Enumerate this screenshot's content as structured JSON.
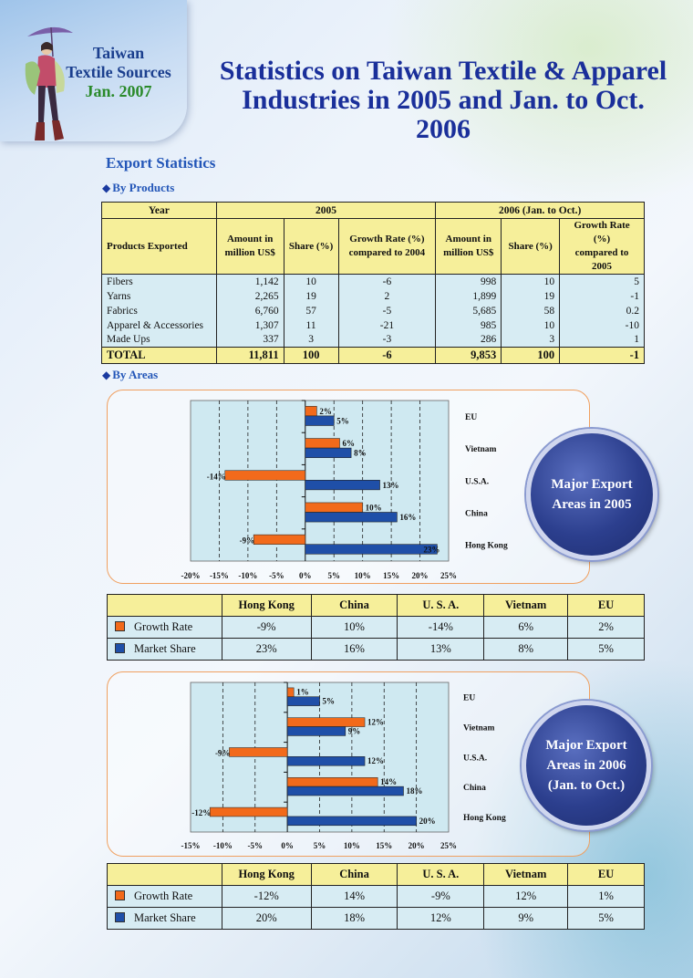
{
  "corner": {
    "line1": "Taiwan",
    "line2": "Textile Sources",
    "line3": "Jan. 2007"
  },
  "title": {
    "line1": "Statistics on Taiwan Textile & Apparel",
    "line2": "Industries in 2005 and Jan. to Oct. 2006"
  },
  "section": "Export Statistics",
  "by_products_label": "By Products",
  "by_areas_label": "By Areas",
  "product_table": {
    "year_label": "Year",
    "year_2005": "2005",
    "year_2006": "2006 (Jan. to Oct.)",
    "col_products": "Products  Exported",
    "col_amount_a": "Amount in",
    "col_amount_b": "million US$",
    "col_share": "Share (%)",
    "col_growth_a": "Growth Rate (%)",
    "col_growth_2004": "compared to 2004",
    "col_growth_2005": "compared to 2005",
    "rows": [
      {
        "name": "Fibers",
        "a05": "1,142",
        "s05": "10",
        "g05": "-6",
        "a06": "998",
        "s06": "10",
        "g06": "5"
      },
      {
        "name": "Yarns",
        "a05": "2,265",
        "s05": "19",
        "g05": "2",
        "a06": "1,899",
        "s06": "19",
        "g06": "-1"
      },
      {
        "name": "Fabrics",
        "a05": "6,760",
        "s05": "57",
        "g05": "-5",
        "a06": "5,685",
        "s06": "58",
        "g06": "0.2"
      },
      {
        "name": "Apparel & Accessories",
        "a05": "1,307",
        "s05": "11",
        "g05": "-21",
        "a06": "985",
        "s06": "10",
        "g06": "-10"
      },
      {
        "name": "Made Ups",
        "a05": "337",
        "s05": "3",
        "g05": "-3",
        "a06": "286",
        "s06": "3",
        "g06": "1"
      }
    ],
    "total": {
      "name": "TOTAL",
      "a05": "11,811",
      "s05": "100",
      "g05": "-6",
      "a06": "9,853",
      "s06": "100",
      "g06": "-1"
    }
  },
  "colors": {
    "growth": "#f26a1b",
    "share": "#1f4fa8",
    "header": "#f6ef9a",
    "cell": "#d7ecf3"
  },
  "chart_data": [
    {
      "type": "bar",
      "orientation": "horizontal",
      "categories": [
        "EU",
        "Vietnam",
        "U.S.A.",
        "China",
        "Hong Kong"
      ],
      "series": [
        {
          "name": "Growth Rate",
          "values": [
            2,
            6,
            -14,
            10,
            -9
          ]
        },
        {
          "name": "Market Share",
          "values": [
            5,
            8,
            13,
            16,
            23
          ]
        }
      ],
      "xlim": [
        -20,
        25
      ],
      "ticks": [
        -20,
        -15,
        -10,
        -5,
        0,
        5,
        10,
        15,
        20,
        25
      ],
      "tick_labels": [
        "-20%",
        "-15%",
        "-10%",
        "-5%",
        "0%",
        "5%",
        "10%",
        "15%",
        "20%",
        "25%"
      ],
      "label_growth": [
        "2%",
        "6%",
        "-14%",
        "10%",
        "-9%"
      ],
      "label_share": [
        "5%",
        "8%",
        "13%",
        "16%",
        "23%"
      ],
      "badge": [
        "Major Export",
        "Areas in 2005"
      ]
    },
    {
      "type": "bar",
      "orientation": "horizontal",
      "categories": [
        "EU",
        "Vietnam",
        "U.S.A.",
        "China",
        "Hong Kong"
      ],
      "series": [
        {
          "name": "Growth Rate",
          "values": [
            1,
            12,
            -9,
            14,
            -12
          ]
        },
        {
          "name": "Market Share",
          "values": [
            5,
            9,
            12,
            18,
            20
          ]
        }
      ],
      "xlim": [
        -15,
        25
      ],
      "ticks": [
        -15,
        -10,
        -5,
        0,
        5,
        10,
        15,
        20,
        25
      ],
      "tick_labels": [
        "-15%",
        "-10%",
        "-5%",
        "0%",
        "5%",
        "10%",
        "15%",
        "20%",
        "25%"
      ],
      "label_growth": [
        "1%",
        "12%",
        "-9%",
        "14%",
        "-12%"
      ],
      "label_share": [
        "5%",
        "9%",
        "12%",
        "18%",
        "20%"
      ],
      "badge": [
        "Major Export",
        "Areas in 2006",
        "(Jan. to Oct.)"
      ]
    }
  ],
  "area_tables": [
    {
      "headers": [
        "Hong Kong",
        "China",
        "U. S. A.",
        "Vietnam",
        "EU"
      ],
      "growth_label": "Growth Rate",
      "share_label": "Market Share",
      "growth": [
        "-9%",
        "10%",
        "-14%",
        "6%",
        "2%"
      ],
      "share": [
        "23%",
        "16%",
        "13%",
        "8%",
        "5%"
      ]
    },
    {
      "headers": [
        "Hong Kong",
        "China",
        "U. S. A.",
        "Vietnam",
        "EU"
      ],
      "growth_label": "Growth Rate",
      "share_label": "Market Share",
      "growth": [
        "-12%",
        "14%",
        "-9%",
        "12%",
        "1%"
      ],
      "share": [
        "20%",
        "18%",
        "12%",
        "9%",
        "5%"
      ]
    }
  ]
}
